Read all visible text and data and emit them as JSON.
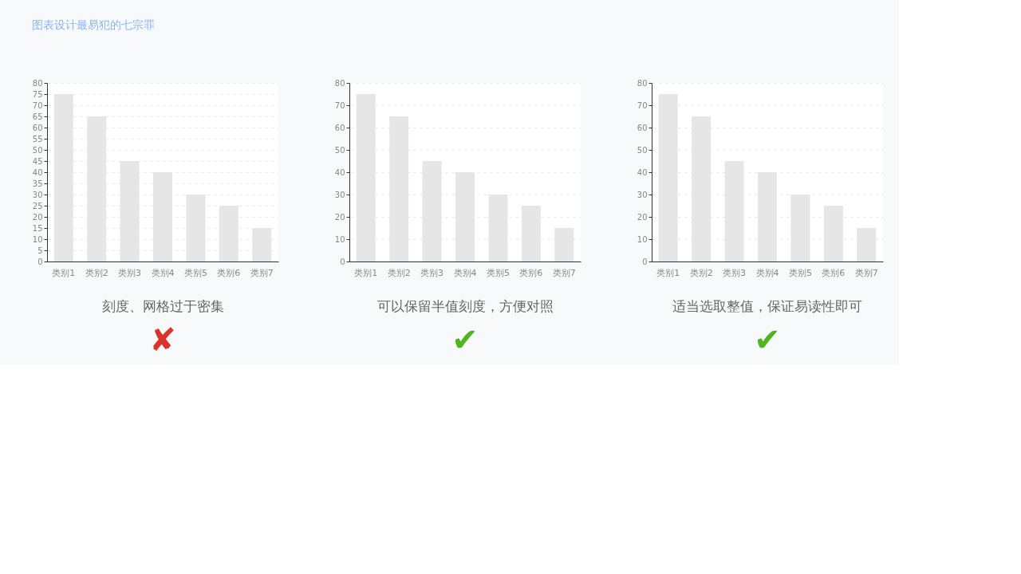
{
  "chart_data": [
    {
      "type": "bar",
      "title": "图表设计最易犯的七宗罪",
      "categories": [
        "类别1",
        "类别2",
        "类别3",
        "类别4",
        "类别5",
        "类别6",
        "类别7"
      ],
      "values": [
        75,
        65,
        45,
        40,
        30,
        25,
        15
      ],
      "color": "#e6e6e6",
      "ylim": [
        0,
        80
      ],
      "yticks": [
        0,
        5,
        10,
        15,
        20,
        25,
        30,
        35,
        40,
        45,
        50,
        55,
        60,
        65,
        70,
        75,
        80
      ],
      "grid": "y",
      "annotations": [
        "刻度、网格过于密集",
        "✘"
      ]
    },
    {
      "type": "bar",
      "categories": [
        "类别1",
        "类别2",
        "类别3",
        "类别4",
        "类别5",
        "类别6",
        "类别7"
      ],
      "values": [
        75,
        65,
        45,
        40,
        30,
        25,
        15
      ],
      "color": "#e6e6e6",
      "ylim": [
        0,
        80
      ],
      "yticks": [
        0,
        10,
        20,
        30,
        40,
        50,
        60,
        70,
        80
      ],
      "grid": "y",
      "annotations": [
        "可以保留半值刻度，方便对照",
        "✔"
      ]
    },
    {
      "type": "bar",
      "categories": [
        "类别1",
        "类别2",
        "类别3",
        "类别4",
        "类别5",
        "类别6",
        "类别7"
      ],
      "values": [
        75,
        65,
        45,
        40,
        30,
        25,
        15
      ],
      "color": "#e6e6e6",
      "ylim": [
        0,
        80
      ],
      "yticks": [
        0,
        10,
        20,
        30,
        40,
        50,
        60,
        70,
        80
      ],
      "grid": "y",
      "annotations": [
        "适当选取整值，保证易读性即可",
        "✔"
      ]
    }
  ]
}
